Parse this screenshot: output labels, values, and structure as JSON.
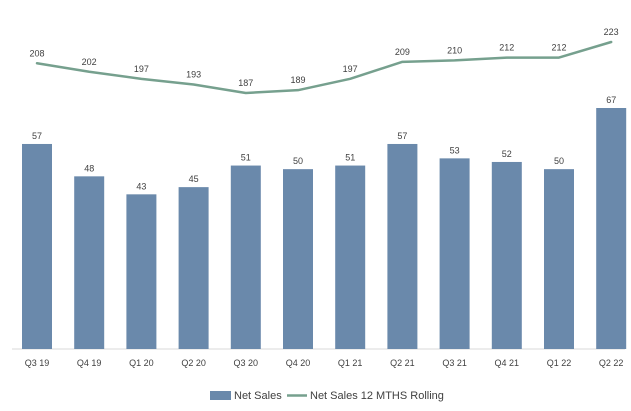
{
  "colors": {
    "bar": "#6a89ab",
    "line": "#76a08e",
    "text": "#404040",
    "axis": "#d9d9d9"
  },
  "chart_data": {
    "type": "bar",
    "categories": [
      "Q3 19",
      "Q4 19",
      "Q1 20",
      "Q2 20",
      "Q3 20",
      "Q4 20",
      "Q1 21",
      "Q2 21",
      "Q3 21",
      "Q4 21",
      "Q1 22",
      "Q2 22"
    ],
    "series": [
      {
        "name": "Net Sales",
        "type": "bar",
        "values": [
          57,
          48,
          43,
          45,
          51,
          50,
          51,
          57,
          53,
          52,
          50,
          67
        ]
      },
      {
        "name": "Net Sales 12 MTHS Rolling",
        "type": "line",
        "values": [
          208,
          202,
          197,
          193,
          187,
          189,
          197,
          209,
          210,
          212,
          212,
          223
        ]
      }
    ],
    "legend": {
      "position": "bottom",
      "items": [
        "Net Sales",
        "Net Sales 12 MTHS Rolling"
      ]
    },
    "grid": false
  }
}
